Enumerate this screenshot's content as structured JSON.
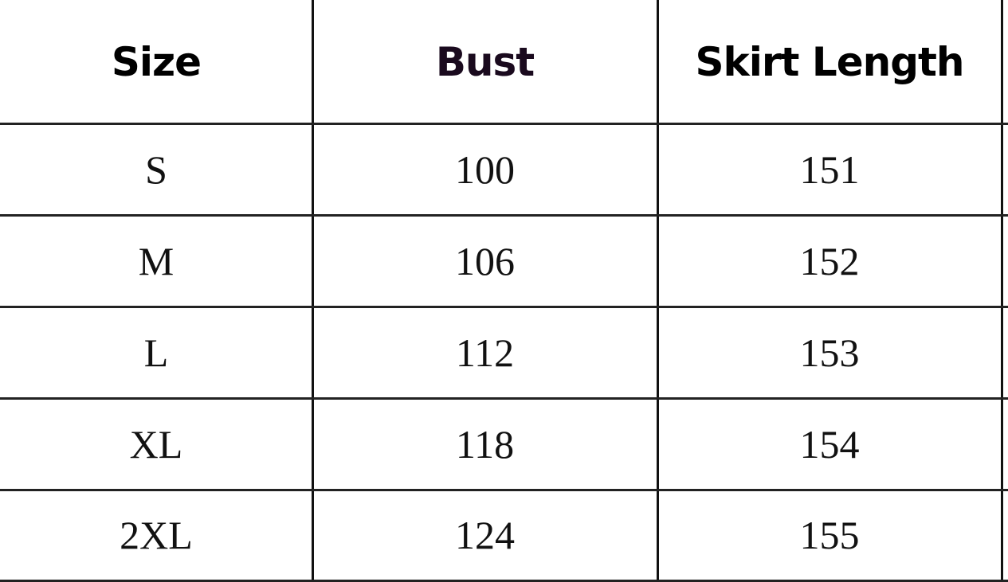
{
  "table": {
    "headers": [
      "Size",
      "Bust",
      "Skirt Length"
    ],
    "header_colors": [
      "#000000",
      "#1a0a1e",
      "#000000"
    ],
    "rows": [
      [
        "S",
        "100",
        "151"
      ],
      [
        "M",
        "106",
        "152"
      ],
      [
        "L",
        "112",
        "153"
      ],
      [
        "XL",
        "118",
        "154"
      ],
      [
        "2XL",
        "124",
        "155"
      ]
    ]
  }
}
